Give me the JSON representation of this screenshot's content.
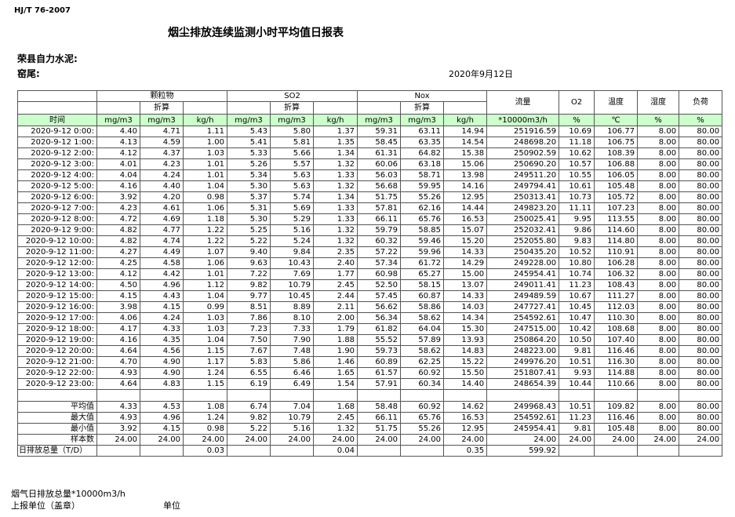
{
  "header": {
    "standard": "HJ/T  76-2007",
    "title": "烟尘排放连续监测小时平均值日报表",
    "company": "荣县自力水泥:",
    "kiln": "窑尾:",
    "date": "2020年9月12日"
  },
  "table": {
    "groups": [
      "颗粒物",
      "SO2",
      "Nox"
    ],
    "converted": [
      "折算",
      "折算",
      "折算"
    ],
    "single_headers": [
      "流量",
      "O2",
      "温度",
      "湿度",
      "负荷"
    ],
    "units": [
      "时间",
      "mg/m3",
      "mg/m3",
      "kg/h",
      "mg/m3",
      "mg/m3",
      "kg/h",
      "mg/m3",
      "mg/m3",
      "kg/h",
      "*10000m3/h",
      "%",
      "℃",
      "%",
      "%"
    ],
    "rows": [
      [
        "2020-9-12 0:00:",
        "4.40",
        "4.71",
        "1.11",
        "5.43",
        "5.80",
        "1.37",
        "59.31",
        "63.11",
        "14.94",
        "251916.59",
        "10.69",
        "106.77",
        "8.00",
        "80.00"
      ],
      [
        "2020-9-12 1:00:",
        "4.13",
        "4.59",
        "1.00",
        "5.41",
        "5.81",
        "1.35",
        "58.45",
        "63.35",
        "14.54",
        "248698.20",
        "11.18",
        "106.75",
        "8.00",
        "80.00"
      ],
      [
        "2020-9-12 2:00:",
        "4.12",
        "4.37",
        "1.03",
        "5.33",
        "5.66",
        "1.34",
        "61.31",
        "64.82",
        "15.38",
        "250902.59",
        "10.62",
        "108.39",
        "8.00",
        "80.00"
      ],
      [
        "2020-9-12 3:00:",
        "4.01",
        "4.23",
        "1.01",
        "5.26",
        "5.57",
        "1.32",
        "60.06",
        "63.18",
        "15.06",
        "250690.20",
        "10.57",
        "106.88",
        "8.00",
        "80.00"
      ],
      [
        "2020-9-12 4:00:",
        "4.04",
        "4.24",
        "1.01",
        "5.34",
        "5.63",
        "1.33",
        "56.03",
        "58.71",
        "13.98",
        "249511.20",
        "10.55",
        "106.05",
        "8.00",
        "80.00"
      ],
      [
        "2020-9-12 5:00:",
        "4.16",
        "4.40",
        "1.04",
        "5.30",
        "5.63",
        "1.32",
        "56.68",
        "59.95",
        "14.16",
        "249794.41",
        "10.61",
        "105.48",
        "8.00",
        "80.00"
      ],
      [
        "2020-9-12 6:00:",
        "3.92",
        "4.20",
        "0.98",
        "5.37",
        "5.74",
        "1.34",
        "51.75",
        "55.26",
        "12.95",
        "250313.41",
        "10.73",
        "105.72",
        "8.00",
        "80.00"
      ],
      [
        "2020-9-12 7:00:",
        "4.23",
        "4.61",
        "1.06",
        "5.31",
        "5.69",
        "1.33",
        "57.81",
        "62.16",
        "14.44",
        "249823.20",
        "11.11",
        "107.23",
        "8.00",
        "80.00"
      ],
      [
        "2020-9-12 8:00:",
        "4.72",
        "4.69",
        "1.18",
        "5.30",
        "5.29",
        "1.33",
        "66.11",
        "65.76",
        "16.53",
        "250025.41",
        "9.95",
        "113.55",
        "8.00",
        "80.00"
      ],
      [
        "2020-9-12 9:00:",
        "4.82",
        "4.77",
        "1.22",
        "5.25",
        "5.16",
        "1.32",
        "59.79",
        "58.85",
        "15.07",
        "252032.41",
        "9.86",
        "114.60",
        "8.00",
        "80.00"
      ],
      [
        "2020-9-12 10:00:",
        "4.82",
        "4.74",
        "1.22",
        "5.22",
        "5.24",
        "1.32",
        "60.32",
        "59.46",
        "15.20",
        "252055.80",
        "9.83",
        "114.80",
        "8.00",
        "80.00"
      ],
      [
        "2020-9-12 11:00:",
        "4.27",
        "4.49",
        "1.07",
        "9.40",
        "9.84",
        "2.35",
        "57.22",
        "59.96",
        "14.33",
        "250435.20",
        "10.52",
        "110.91",
        "8.00",
        "80.00"
      ],
      [
        "2020-9-12 12:00:",
        "4.25",
        "4.58",
        "1.06",
        "9.63",
        "10.43",
        "2.40",
        "57.34",
        "61.72",
        "14.29",
        "249228.00",
        "10.80",
        "106.28",
        "8.00",
        "80.00"
      ],
      [
        "2020-9-12 13:00:",
        "4.12",
        "4.42",
        "1.01",
        "7.22",
        "7.69",
        "1.77",
        "60.98",
        "65.27",
        "15.00",
        "245954.41",
        "10.74",
        "106.32",
        "8.00",
        "80.00"
      ],
      [
        "2020-9-12 14:00:",
        "4.50",
        "4.96",
        "1.12",
        "9.82",
        "10.79",
        "2.45",
        "52.50",
        "58.15",
        "13.07",
        "249011.41",
        "11.23",
        "108.43",
        "8.00",
        "80.00"
      ],
      [
        "2020-9-12 15:00:",
        "4.15",
        "4.43",
        "1.04",
        "9.77",
        "10.45",
        "2.44",
        "57.45",
        "60.87",
        "14.33",
        "249489.59",
        "10.67",
        "111.27",
        "8.00",
        "80.00"
      ],
      [
        "2020-9-12 16:00:",
        "3.98",
        "4.15",
        "0.99",
        "8.51",
        "8.89",
        "2.11",
        "56.62",
        "58.86",
        "14.03",
        "247727.41",
        "10.45",
        "112.03",
        "8.00",
        "80.00"
      ],
      [
        "2020-9-12 17:00:",
        "4.06",
        "4.24",
        "1.03",
        "7.86",
        "8.10",
        "2.00",
        "56.34",
        "58.62",
        "14.34",
        "254592.61",
        "10.47",
        "110.30",
        "8.00",
        "80.00"
      ],
      [
        "2020-9-12 18:00:",
        "4.17",
        "4.33",
        "1.03",
        "7.23",
        "7.33",
        "1.79",
        "61.82",
        "64.04",
        "15.30",
        "247515.00",
        "10.42",
        "108.68",
        "8.00",
        "80.00"
      ],
      [
        "2020-9-12 19:00:",
        "4.16",
        "4.35",
        "1.04",
        "7.50",
        "7.90",
        "1.88",
        "55.52",
        "57.89",
        "13.93",
        "250864.20",
        "10.50",
        "107.40",
        "8.00",
        "80.00"
      ],
      [
        "2020-9-12 20:00:",
        "4.64",
        "4.56",
        "1.15",
        "7.67",
        "7.48",
        "1.90",
        "59.73",
        "58.62",
        "14.83",
        "248223.00",
        "9.81",
        "116.46",
        "8.00",
        "80.00"
      ],
      [
        "2020-9-12 21:00:",
        "4.70",
        "4.90",
        "1.17",
        "5.83",
        "5.86",
        "1.46",
        "60.89",
        "62.25",
        "15.22",
        "249976.20",
        "10.51",
        "116.30",
        "8.00",
        "80.00"
      ],
      [
        "2020-9-12 22:00:",
        "4.93",
        "4.90",
        "1.24",
        "6.55",
        "6.46",
        "1.65",
        "61.57",
        "60.92",
        "15.50",
        "251807.41",
        "9.93",
        "114.88",
        "8.00",
        "80.00"
      ],
      [
        "2020-9-12 23:00:",
        "4.64",
        "4.83",
        "1.15",
        "6.19",
        "6.49",
        "1.54",
        "57.91",
        "60.34",
        "14.40",
        "248654.39",
        "10.44",
        "110.66",
        "8.00",
        "80.00"
      ]
    ],
    "summary": [
      [
        "平均值",
        "4.33",
        "4.53",
        "1.08",
        "6.74",
        "7.04",
        "1.68",
        "58.48",
        "60.92",
        "14.62",
        "249968.43",
        "10.51",
        "109.82",
        "8.00",
        "80.00"
      ],
      [
        "最大值",
        "4.93",
        "4.96",
        "1.24",
        "9.82",
        "10.79",
        "2.45",
        "66.11",
        "65.76",
        "16.53",
        "254592.61",
        "11.23",
        "116.46",
        "8.00",
        "80.00"
      ],
      [
        "最小值",
        "3.92",
        "4.15",
        "0.98",
        "5.22",
        "5.16",
        "1.32",
        "51.75",
        "55.26",
        "12.95",
        "245954.41",
        "9.81",
        "105.48",
        "8.00",
        "80.00"
      ],
      [
        "样本数",
        "24.00",
        "24.00",
        "24.00",
        "24.00",
        "24.00",
        "24.00",
        "24.00",
        "24.00",
        "24.00",
        "24.00",
        "24.00",
        "24.00",
        "24.00",
        "24.00"
      ]
    ],
    "total": [
      "日排放总量（T/D）",
      null,
      null,
      "0.03",
      null,
      null,
      "0.04",
      null,
      null,
      "0.35",
      "599.92",
      null,
      null,
      null,
      null
    ]
  },
  "footer": {
    "flue_total": "烟气日排放总量*10000m3/h",
    "unit_seal": "上报单位（盖章）",
    "unit": "单位"
  }
}
